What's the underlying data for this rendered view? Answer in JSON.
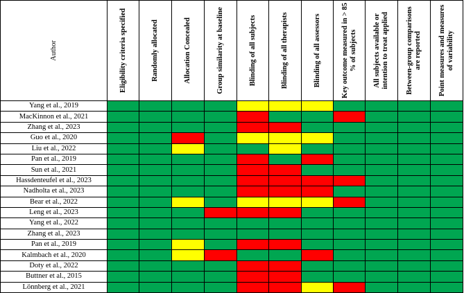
{
  "headers": [
    "Author",
    "Eligibility criteria specified",
    "Randomly allocated",
    "Allocation Concealed",
    "Group similarity at baseline",
    "Blinding of all subjects",
    "Blinding of all therapists",
    "Blinding of all assessors",
    "Key outcome measured in > 85 % of subjects",
    "All subjects available or intention to treat applied",
    "Between-group comparisons are reported",
    "Point measures and measures of variability"
  ],
  "colors": {
    "G": "#00a651",
    "Y": "#ffff00",
    "R": "#ff0000"
  },
  "rows": [
    {
      "author": "Yang et al., 2019",
      "ratings": [
        "G",
        "G",
        "G",
        "G",
        "Y",
        "Y",
        "Y",
        "G",
        "G",
        "G",
        "G"
      ]
    },
    {
      "author": "MacKinnon et al., 2021",
      "ratings": [
        "G",
        "G",
        "G",
        "G",
        "R",
        "G",
        "G",
        "R",
        "G",
        "G",
        "G"
      ]
    },
    {
      "author": "Zhang et al., 2023",
      "ratings": [
        "G",
        "G",
        "G",
        "G",
        "R",
        "R",
        "G",
        "G",
        "G",
        "G",
        "G"
      ]
    },
    {
      "author": "Guo et al., 2020",
      "ratings": [
        "G",
        "G",
        "R",
        "G",
        "Y",
        "Y",
        "Y",
        "G",
        "G",
        "G",
        "G"
      ]
    },
    {
      "author": "Liu et al., 2022",
      "ratings": [
        "G",
        "G",
        "Y",
        "G",
        "G",
        "Y",
        "G",
        "G",
        "G",
        "G",
        "G"
      ]
    },
    {
      "author": "Pan et al., 2019",
      "ratings": [
        "G",
        "G",
        "G",
        "G",
        "R",
        "G",
        "R",
        "G",
        "G",
        "G",
        "G"
      ]
    },
    {
      "author": "Sun et al., 2021",
      "ratings": [
        "G",
        "G",
        "G",
        "G",
        "R",
        "R",
        "G",
        "G",
        "G",
        "G",
        "G"
      ]
    },
    {
      "author": "Hassdenteufel et al., 2023",
      "ratings": [
        "G",
        "G",
        "G",
        "G",
        "R",
        "R",
        "R",
        "R",
        "G",
        "G",
        "G"
      ]
    },
    {
      "author": "Nadholta et al., 2023",
      "ratings": [
        "G",
        "G",
        "G",
        "G",
        "R",
        "R",
        "R",
        "G",
        "G",
        "G",
        "G"
      ]
    },
    {
      "author": "Bear et al., 2022",
      "ratings": [
        "G",
        "G",
        "Y",
        "G",
        "Y",
        "Y",
        "Y",
        "R",
        "G",
        "G",
        "G"
      ]
    },
    {
      "author": "Leng et al., 2023",
      "ratings": [
        "G",
        "G",
        "G",
        "R",
        "R",
        "R",
        "G",
        "G",
        "G",
        "G",
        "G"
      ]
    },
    {
      "author": "Yang et al., 2022",
      "ratings": [
        "G",
        "G",
        "G",
        "G",
        "G",
        "G",
        "G",
        "G",
        "G",
        "G",
        "G"
      ]
    },
    {
      "author": "Zhang et al., 2023",
      "ratings": [
        "G",
        "G",
        "G",
        "G",
        "G",
        "G",
        "G",
        "G",
        "G",
        "G",
        "G"
      ]
    },
    {
      "author": "Pan et al., 2019",
      "ratings": [
        "G",
        "G",
        "Y",
        "G",
        "R",
        "R",
        "G",
        "G",
        "G",
        "G",
        "G"
      ]
    },
    {
      "author": "Kalmbach et al., 2020",
      "ratings": [
        "G",
        "G",
        "Y",
        "R",
        "G",
        "G",
        "R",
        "G",
        "G",
        "G",
        "G"
      ]
    },
    {
      "author": "Doty et al., 2022",
      "ratings": [
        "G",
        "G",
        "G",
        "G",
        "R",
        "R",
        "G",
        "G",
        "G",
        "G",
        "G"
      ]
    },
    {
      "author": "Buttner et al., 2015",
      "ratings": [
        "G",
        "G",
        "G",
        "G",
        "R",
        "R",
        "G",
        "G",
        "G",
        "G",
        "G"
      ]
    },
    {
      "author": "Lönnberg et al., 2021",
      "ratings": [
        "G",
        "G",
        "G",
        "G",
        "R",
        "R",
        "Y",
        "R",
        "G",
        "G",
        "G"
      ]
    }
  ]
}
